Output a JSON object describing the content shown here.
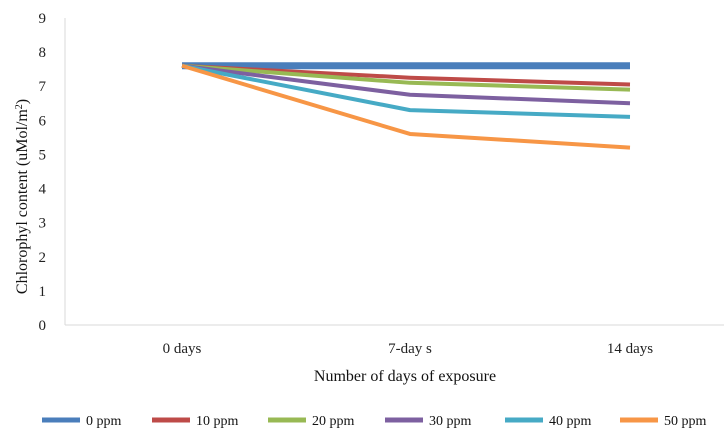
{
  "chart_data": {
    "type": "line",
    "title": "",
    "xlabel": "Number  of days of exposure",
    "ylabel": "Chlorophyl content (uMol/m",
    "ylabel_sup": "2",
    "ylabel_close": ")",
    "categories": [
      "0 days",
      "7-day s",
      "14 days"
    ],
    "ylim": [
      0,
      9
    ],
    "yticks": [
      0,
      1,
      2,
      3,
      4,
      5,
      6,
      7,
      8,
      9
    ],
    "grid": false,
    "legend_position": "bottom",
    "series": [
      {
        "name": "0 ppm",
        "color": "#4A7EBB",
        "values": [
          7.6,
          7.6,
          7.6
        ]
      },
      {
        "name": "10 ppm",
        "color": "#BE4B48",
        "values": [
          7.6,
          7.25,
          7.05
        ]
      },
      {
        "name": "20 ppm",
        "color": "#98B954",
        "values": [
          7.6,
          7.1,
          6.9
        ]
      },
      {
        "name": "30 ppm",
        "color": "#7D60A0",
        "values": [
          7.6,
          6.75,
          6.5
        ]
      },
      {
        "name": "40 ppm",
        "color": "#46AAC5",
        "values": [
          7.6,
          6.3,
          6.1
        ]
      },
      {
        "name": "50 ppm",
        "color": "#F79646",
        "values": [
          7.6,
          5.6,
          5.2
        ]
      }
    ]
  }
}
